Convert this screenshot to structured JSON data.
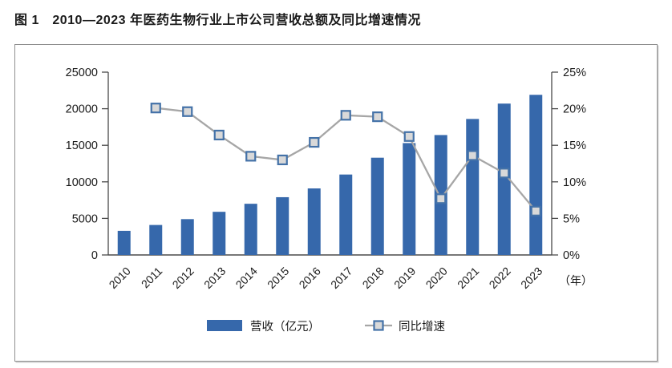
{
  "title": "图 1　2010—2023 年医药生物行业上市公司营收总额及同比增速情况",
  "chart_data": {
    "type": "bar",
    "subtype": "bar+line combo, dual axis",
    "title": "2010—2023 年医药生物行业上市公司营收总额及同比增速情况",
    "categories": [
      "2010",
      "2011",
      "2012",
      "2013",
      "2014",
      "2015",
      "2016",
      "2017",
      "2018",
      "2019",
      "2020",
      "2021",
      "2022",
      "2023"
    ],
    "series": [
      {
        "name": "营收（亿元）",
        "type": "bar",
        "axis": "left",
        "values": [
          3300,
          4100,
          4900,
          5900,
          7000,
          7900,
          9100,
          11000,
          13300,
          15300,
          16400,
          18600,
          20700,
          21900
        ]
      },
      {
        "name": "同比增速",
        "type": "line",
        "axis": "right",
        "values": [
          null,
          20.1,
          19.6,
          16.4,
          13.5,
          13.0,
          15.4,
          19.1,
          18.9,
          16.2,
          7.7,
          13.6,
          11.2,
          6.0
        ]
      }
    ],
    "left_axis": {
      "min": 0,
      "max": 25000,
      "step": 5000,
      "suffix": ""
    },
    "right_axis": {
      "min": 0,
      "max": 25,
      "step": 5,
      "suffix": "%"
    },
    "x_axis_unit": "（年）",
    "legend_position": "bottom-center",
    "grid": false,
    "colors": {
      "bar": "#3668AB",
      "line": "#A6A6A6",
      "marker_fill": "#D9D9D9",
      "marker_stroke": "#4472A8",
      "axis": "#4a4a4a",
      "text": "#1a1a1a"
    }
  }
}
